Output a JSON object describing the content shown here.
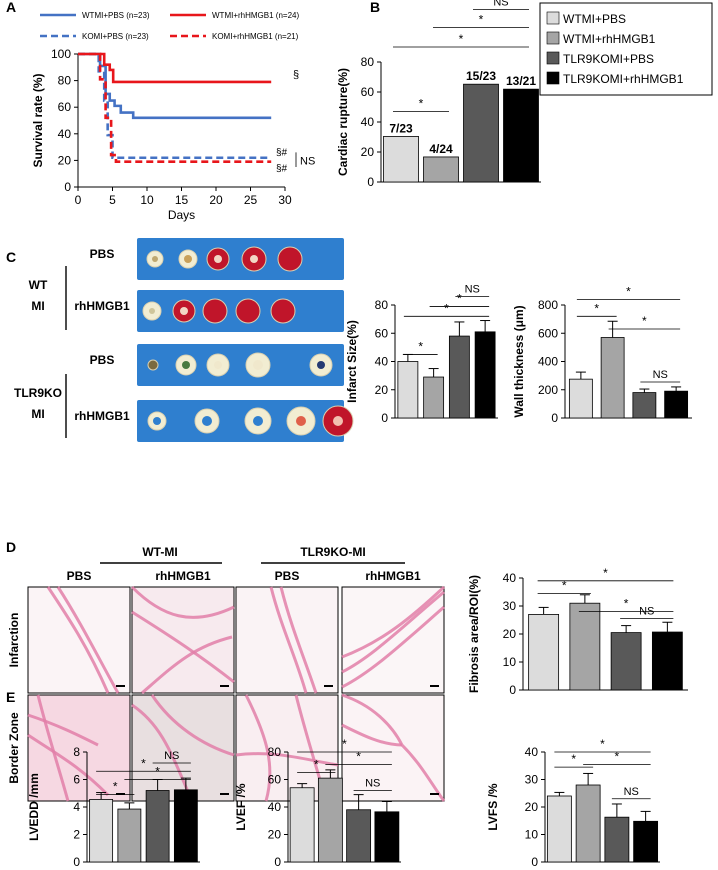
{
  "panel_labels": [
    "A",
    "B",
    "C",
    "D",
    "E"
  ],
  "colors": {
    "wt_pbs": "#dcdcdc",
    "wt_hmgb1": "#a5a5a5",
    "ko_pbs": "#595959",
    "ko_hmgb1": "#000000",
    "survival_blue": "#4472c4",
    "survival_red": "#e8161b",
    "tissue_pink": "#e27fa8",
    "tissue_red": "#c0152a",
    "tissue_pale": "#f2edd2",
    "plate_blue": "#2f7fcf"
  },
  "chart_data": [
    {
      "id": "A",
      "type": "line",
      "title": "",
      "xlabel": "Days",
      "ylabel": "Survival rate (%)",
      "xlim": [
        0,
        30
      ],
      "ylim": [
        0,
        100
      ],
      "xticks": [
        "0",
        "5",
        "10",
        "15",
        "20",
        "25",
        "30"
      ],
      "yticks": [
        "0",
        "20",
        "40",
        "60",
        "80",
        "100"
      ],
      "legend": [
        "WTMI+PBS (n=23)",
        "WTMI+rhHMGB1 (n=24)",
        "KOMI+PBS (n=23)",
        "KOMI+rhHMGB1 (n=21)"
      ],
      "series": [
        {
          "name": "WTMI+PBS (n=23)",
          "color": "#4472c4",
          "dash": false,
          "x": [
            0,
            3.2,
            3.2,
            4.0,
            4.0,
            4.6,
            4.6,
            5.3,
            5.3,
            6.2,
            6.2,
            8.0,
            8.0,
            28
          ],
          "y": [
            100,
            100,
            91,
            91,
            70,
            70,
            65,
            65,
            61,
            61,
            56,
            56,
            52,
            52
          ]
        },
        {
          "name": "WTMI+rhHMGB1 (n=24)",
          "color": "#e8161b",
          "dash": false,
          "x": [
            0,
            3.8,
            3.8,
            4.6,
            4.6,
            5.1,
            5.1,
            28
          ],
          "y": [
            100,
            100,
            92,
            92,
            88,
            88,
            79,
            79
          ]
        },
        {
          "name": "KOMI+PBS (n=23)",
          "color": "#4472c4",
          "dash": true,
          "x": [
            0,
            3.0,
            3.0,
            3.8,
            3.8,
            4.3,
            4.3,
            5.0,
            5.0,
            28
          ],
          "y": [
            100,
            100,
            87,
            87,
            65,
            65,
            39,
            39,
            22,
            22
          ]
        },
        {
          "name": "KOMI+rhHMGB1 (n=21)",
          "color": "#e8161b",
          "dash": true,
          "x": [
            0,
            3.2,
            3.2,
            4.0,
            4.0,
            4.8,
            4.8,
            5.5,
            5.5,
            28
          ],
          "y": [
            100,
            100,
            81,
            81,
            52,
            52,
            24,
            24,
            19,
            19
          ]
        }
      ],
      "annotations": [
        "§",
        "§#",
        "§#",
        "NS"
      ]
    },
    {
      "id": "B",
      "type": "bar",
      "title": "",
      "ylabel": "Cardiac rupture(%)",
      "ylim": [
        0,
        80
      ],
      "yticks": [
        "0",
        "20",
        "40",
        "60",
        "80"
      ],
      "categories": [
        "WTMI+PBS",
        "WTMI+rhHMGB1",
        "TLR9KOMI+PBS",
        "TLR9KOMI+rhHMGB1"
      ],
      "values": [
        30.4,
        16.7,
        65.2,
        61.9
      ],
      "bar_labels": [
        "7/23",
        "4/24",
        "15/23",
        "13/21"
      ],
      "significance": [
        "*",
        "*",
        "*",
        "NS"
      ]
    },
    {
      "id": "C_infarct",
      "type": "bar",
      "title": "",
      "ylabel": "Infarct Size(%)",
      "ylim": [
        0,
        80
      ],
      "yticks": [
        "0",
        "20",
        "40",
        "60",
        "80"
      ],
      "categories": [
        "WTMI+PBS",
        "WTMI+rhHMGB1",
        "TLR9KOMI+PBS",
        "TLR9KOMI+rhHMGB1"
      ],
      "values": [
        40,
        29,
        58,
        61
      ],
      "errors": [
        5,
        6,
        10,
        8
      ],
      "significance": [
        "*",
        "*",
        "*",
        "NS"
      ]
    },
    {
      "id": "C_wall",
      "type": "bar",
      "title": "",
      "ylabel": "Wall thickness (μm)",
      "ylim": [
        0,
        800
      ],
      "yticks": [
        "0",
        "200",
        "400",
        "600",
        "800"
      ],
      "categories": [
        "WTMI+PBS",
        "WTMI+rhHMGB1",
        "TLR9KOMI+PBS",
        "TLR9KOMI+rhHMGB1"
      ],
      "values": [
        275,
        570,
        180,
        190
      ],
      "errors": [
        50,
        115,
        25,
        30
      ],
      "significance": [
        "*",
        "*",
        "*",
        "NS"
      ]
    },
    {
      "id": "D_fibrosis",
      "type": "bar",
      "title": "",
      "ylabel": "Fibrosis area/ROI(%)",
      "ylim": [
        0,
        40
      ],
      "yticks": [
        "0",
        "10",
        "20",
        "30",
        "40"
      ],
      "categories": [
        "WTMI+PBS",
        "WTMI+rhHMGB1",
        "TLR9KOMI+PBS",
        "TLR9KOMI+rhHMGB1"
      ],
      "values": [
        27,
        31,
        20.5,
        20.7
      ],
      "errors": [
        2.5,
        3,
        2.5,
        3.5
      ],
      "significance": [
        "*",
        "*",
        "*",
        "NS"
      ]
    },
    {
      "id": "E_lvedd",
      "type": "bar",
      "title": "",
      "ylabel": "LVEDD /mm",
      "ylim": [
        0,
        8
      ],
      "yticks": [
        "0",
        "2",
        "4",
        "6",
        "8"
      ],
      "categories": [
        "WTMI+PBS",
        "WTMI+rhHMGB1",
        "TLR9KOMI+PBS",
        "TLR9KOMI+rhHMGB1"
      ],
      "values": [
        4.55,
        3.85,
        5.2,
        5.25
      ],
      "errors": [
        0.5,
        0.45,
        0.8,
        0.85
      ],
      "significance": [
        "*",
        "*",
        "*",
        "NS"
      ]
    },
    {
      "id": "E_lvef",
      "type": "bar",
      "title": "",
      "ylabel": "LVEF /%",
      "ylim": [
        0,
        80
      ],
      "yticks": [
        "0",
        "20",
        "40",
        "60",
        "80"
      ],
      "categories": [
        "WTMI+PBS",
        "WTMI+rhHMGB1",
        "TLR9KOMI+PBS",
        "TLR9KOMI+rhHMGB1"
      ],
      "values": [
        54,
        61,
        38,
        36.5
      ],
      "errors": [
        3,
        6,
        11,
        7.5
      ],
      "significance": [
        "*",
        "*",
        "*",
        "NS"
      ]
    },
    {
      "id": "E_lvfs",
      "type": "bar",
      "title": "",
      "ylabel": "LVFS /%",
      "ylim": [
        0,
        40
      ],
      "yticks": [
        "0",
        "10",
        "20",
        "30",
        "40"
      ],
      "categories": [
        "WTMI+PBS",
        "WTMI+rhHMGB1",
        "TLR9KOMI+PBS",
        "TLR9KOMI+rhHMGB1"
      ],
      "values": [
        24,
        28,
        16.3,
        14.8
      ],
      "errors": [
        1.3,
        4.2,
        4.8,
        3.6
      ],
      "significance": [
        "*",
        "*",
        "*",
        "NS"
      ]
    }
  ],
  "legend_B": [
    "WTMI+PBS",
    "WTMI+rhHMGB1",
    "TLR9KOMI+PBS",
    "TLR9KOMI+rhHMGB1"
  ],
  "panel_c": {
    "groups": [
      {
        "label": "WT\nMI",
        "rows": [
          "PBS",
          "rhHMGB1"
        ]
      },
      {
        "label": "TLR9KO\nMI",
        "rows": [
          "PBS",
          "rhHMGB1"
        ]
      }
    ]
  },
  "panel_d": {
    "group_headers": [
      "WT-MI",
      "TLR9KO-MI"
    ],
    "col_labels": [
      "PBS",
      "rhHMGB1",
      "PBS",
      "rhHMGB1"
    ],
    "row_labels": [
      "Infarction",
      "Border Zone"
    ]
  }
}
